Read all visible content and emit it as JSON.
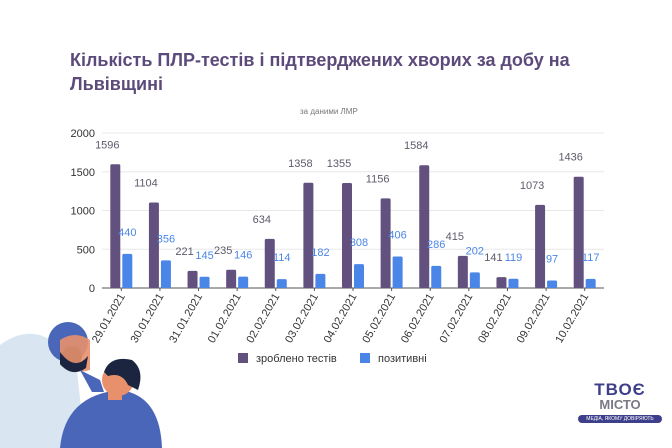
{
  "chart_data": {
    "type": "bar",
    "title": "Кількість ПЛР-тестів і підтверджених хворих за добу на Львівщині",
    "subtitle": "за даними ЛМР",
    "categories": [
      "29.01.2021",
      "30.01.2021",
      "31.01.2021",
      "01.02.2021",
      "02.02.2021",
      "03.02.2021",
      "04.02.2021",
      "05.02.2021",
      "06.02.2021",
      "07.02.2021",
      "08.02.2021",
      "09.02.2021",
      "10.02.2021"
    ],
    "series": [
      {
        "name": "зроблено тестів",
        "color": "#62517f",
        "values": [
          1596,
          1104,
          221,
          235,
          634,
          1358,
          1355,
          1156,
          1584,
          415,
          141,
          1073,
          1436
        ]
      },
      {
        "name": "позитивні",
        "color": "#4a86e8",
        "values": [
          440,
          356,
          145,
          146,
          114,
          182,
          308,
          406,
          286,
          202,
          119,
          97,
          117
        ]
      }
    ],
    "yticks": [
      0,
      500,
      1000,
      1500,
      2000
    ],
    "ylim": [
      0,
      2000
    ],
    "legend": "bottom",
    "grid": true
  },
  "logo": {
    "line1": "ТВОЄ",
    "line2": "МІСТО",
    "tagline": "МЕДІА, ЯКОМУ ДОВІРЯЮТЬ"
  }
}
